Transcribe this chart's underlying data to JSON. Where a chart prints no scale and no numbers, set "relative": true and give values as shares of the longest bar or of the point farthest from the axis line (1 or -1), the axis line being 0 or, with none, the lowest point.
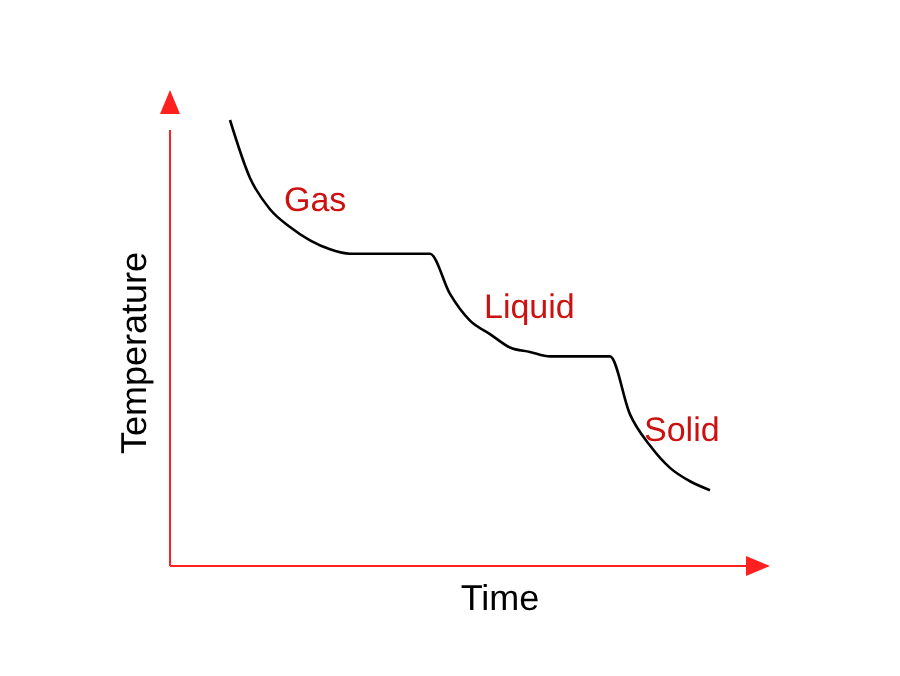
{
  "chart_data": {
    "type": "line",
    "relative": true,
    "xlabel": "Time",
    "ylabel": "Temperature",
    "marker": "none",
    "line_style": "solid",
    "categories": [
      null,
      null,
      null,
      null,
      null,
      null,
      null,
      null,
      null,
      null,
      null,
      null,
      null,
      null,
      null,
      null,
      null,
      null,
      null,
      null,
      null,
      null,
      null,
      null,
      null,
      null,
      null,
      null,
      null,
      null,
      null
    ],
    "series": [
      {
        "color": "#000000",
        "values": [
          null,
          null,
          null,
          1.0,
          0.87,
          0.8,
          0.76,
          0.73,
          0.71,
          0.7,
          0.7,
          0.7,
          0.7,
          0.7,
          0.61,
          0.55,
          0.52,
          0.49,
          0.48,
          0.47,
          0.47,
          0.47,
          0.47,
          0.34,
          0.27,
          0.22,
          0.19,
          0.17,
          null,
          null,
          null
        ]
      }
    ],
    "annotations": [
      "Gas",
      "Liquid",
      "Solid"
    ]
  }
}
